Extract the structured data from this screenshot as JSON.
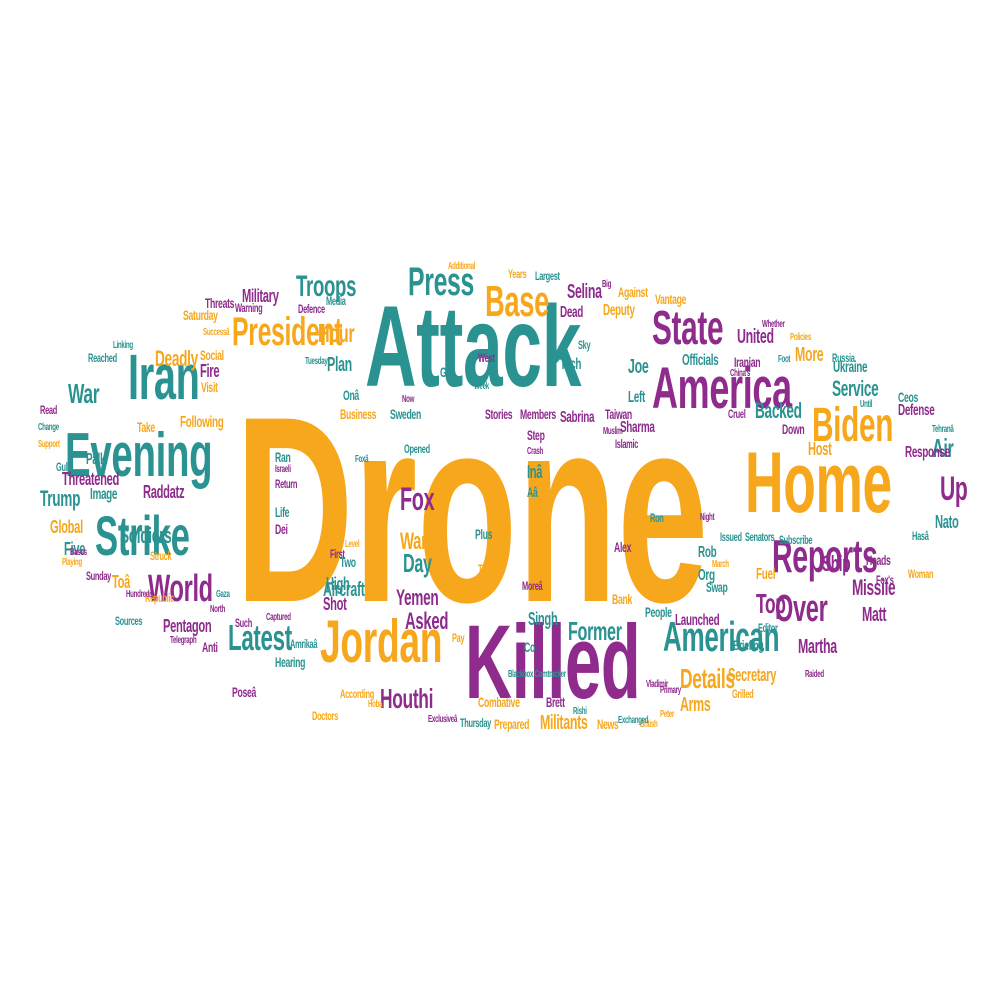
{
  "palette": {
    "teal": "#2a9391",
    "purple": "#8e2b8c",
    "gold": "#f6a71c",
    "background": "#ffffff"
  },
  "words": [
    {
      "text": "Drone",
      "color": "gold"
    },
    {
      "text": "Attack",
      "color": "teal"
    },
    {
      "text": "Killed",
      "color": "purple"
    },
    {
      "text": "Home",
      "color": "gold"
    },
    {
      "text": "America",
      "color": "purple"
    },
    {
      "text": "Evening",
      "color": "teal"
    },
    {
      "text": "Jordan",
      "color": "gold"
    },
    {
      "text": "Strike",
      "color": "teal"
    },
    {
      "text": "Iran",
      "color": "teal"
    },
    {
      "text": "President",
      "color": "gold"
    },
    {
      "text": "Reports",
      "color": "purple"
    },
    {
      "text": "Biden",
      "color": "gold"
    },
    {
      "text": "American",
      "color": "teal"
    },
    {
      "text": "State",
      "color": "purple"
    },
    {
      "text": "Base",
      "color": "gold"
    },
    {
      "text": "Press",
      "color": "teal"
    },
    {
      "text": "World",
      "color": "purple"
    },
    {
      "text": "Latest",
      "color": "teal"
    },
    {
      "text": "Over",
      "color": "purple"
    },
    {
      "text": "Fox",
      "color": "purple"
    },
    {
      "text": "Houthi",
      "color": "purple"
    },
    {
      "text": "Troops",
      "color": "teal"
    },
    {
      "text": "Details",
      "color": "gold"
    },
    {
      "text": "Up",
      "color": "purple"
    },
    {
      "text": "Air",
      "color": "teal"
    },
    {
      "text": "Missile",
      "color": "purple"
    },
    {
      "text": "Service",
      "color": "teal"
    },
    {
      "text": "Top",
      "color": "purple"
    },
    {
      "text": "Backed",
      "color": "teal"
    },
    {
      "text": "Hour",
      "color": "gold"
    },
    {
      "text": "Deadly",
      "color": "gold"
    },
    {
      "text": "War",
      "color": "teal"
    },
    {
      "text": "Soldiers",
      "color": "teal"
    },
    {
      "text": "Trump",
      "color": "teal"
    },
    {
      "text": "Threatened",
      "color": "purple"
    },
    {
      "text": "Military",
      "color": "purple"
    },
    {
      "text": "Day",
      "color": "teal"
    },
    {
      "text": "Former",
      "color": "teal"
    },
    {
      "text": "Asked",
      "color": "purple"
    },
    {
      "text": "Wang",
      "color": "gold"
    },
    {
      "text": "Yemen",
      "color": "purple"
    },
    {
      "text": "Plan",
      "color": "teal"
    },
    {
      "text": "Joe",
      "color": "teal"
    },
    {
      "text": "United",
      "color": "purple"
    },
    {
      "text": "More",
      "color": "gold"
    },
    {
      "text": "Host",
      "color": "gold"
    },
    {
      "text": "Ship",
      "color": "purple"
    },
    {
      "text": "Nato",
      "color": "teal"
    },
    {
      "text": "Matt",
      "color": "purple"
    },
    {
      "text": "Martha",
      "color": "purple"
    },
    {
      "text": "Arms",
      "color": "gold"
    },
    {
      "text": "Secretary",
      "color": "gold"
    },
    {
      "text": "Pentagon",
      "color": "purple"
    },
    {
      "text": "Aircraft",
      "color": "teal"
    },
    {
      "text": "Shot",
      "color": "purple"
    },
    {
      "text": "High",
      "color": "teal"
    },
    {
      "text": "Militants",
      "color": "gold"
    },
    {
      "text": "Launched",
      "color": "purple"
    },
    {
      "text": "Officials",
      "color": "teal"
    },
    {
      "text": "Iranian",
      "color": "purple"
    },
    {
      "text": "Defense",
      "color": "purple"
    },
    {
      "text": "Response",
      "color": "purple"
    },
    {
      "text": "Ukraine",
      "color": "teal"
    },
    {
      "text": "Selina",
      "color": "purple"
    },
    {
      "text": "Sabrina",
      "color": "purple"
    },
    {
      "text": "Sharma",
      "color": "purple"
    },
    {
      "text": "Singh",
      "color": "teal"
    },
    {
      "text": "Raddatz",
      "color": "purple"
    },
    {
      "text": "Global",
      "color": "gold"
    },
    {
      "text": "Five",
      "color": "teal"
    },
    {
      "text": "Image",
      "color": "teal"
    },
    {
      "text": "Following",
      "color": "gold"
    },
    {
      "text": "Take",
      "color": "gold"
    },
    {
      "text": "Visit",
      "color": "gold"
    },
    {
      "text": "Fire",
      "color": "purple"
    },
    {
      "text": "Social",
      "color": "gold"
    },
    {
      "text": "Threats",
      "color": "purple"
    },
    {
      "text": "Warning",
      "color": "purple"
    },
    {
      "text": "Deputy",
      "color": "gold"
    },
    {
      "text": "Against",
      "color": "gold"
    },
    {
      "text": "Vantage",
      "color": "gold"
    },
    {
      "text": "Tech",
      "color": "teal"
    },
    {
      "text": "Dead",
      "color": "purple"
    },
    {
      "text": "Left",
      "color": "teal"
    },
    {
      "text": "Members",
      "color": "purple"
    },
    {
      "text": "Stories",
      "color": "purple"
    },
    {
      "text": "Taiwan",
      "color": "purple"
    },
    {
      "text": "Sweden",
      "color": "teal"
    },
    {
      "text": "Business",
      "color": "gold"
    },
    {
      "text": "Step",
      "color": "purple"
    },
    {
      "text": "Rob",
      "color": "teal"
    },
    {
      "text": "Alex",
      "color": "purple"
    },
    {
      "text": "Org",
      "color": "teal"
    },
    {
      "text": "Fuel",
      "color": "gold"
    },
    {
      "text": "People",
      "color": "teal"
    },
    {
      "text": "Briefing",
      "color": "teal"
    },
    {
      "text": "Editor",
      "color": "teal"
    },
    {
      "text": "News",
      "color": "gold"
    },
    {
      "text": "Prepared",
      "color": "gold"
    },
    {
      "text": "Combative",
      "color": "gold"
    },
    {
      "text": "Brett",
      "color": "purple"
    },
    {
      "text": "According",
      "color": "gold"
    },
    {
      "text": "Hearing",
      "color": "teal"
    },
    {
      "text": "Doctors",
      "color": "gold"
    },
    {
      "text": "Anti",
      "color": "purple"
    },
    {
      "text": "Palki",
      "color": "teal"
    },
    {
      "text": "Toâ",
      "color": "gold"
    },
    {
      "text": "Onâ",
      "color": "teal"
    },
    {
      "text": "Inâ",
      "color": "teal"
    },
    {
      "text": "Aâ",
      "color": "teal"
    },
    {
      "text": "Ceos",
      "color": "teal"
    },
    {
      "text": "Heads",
      "color": "purple"
    },
    {
      "text": "Subscribe",
      "color": "teal"
    },
    {
      "text": "Down",
      "color": "purple"
    },
    {
      "text": "Grilled",
      "color": "gold"
    },
    {
      "text": "Two",
      "color": "teal"
    },
    {
      "text": "First",
      "color": "purple"
    },
    {
      "text": "Level",
      "color": "gold"
    },
    {
      "text": "Such",
      "color": "purple"
    },
    {
      "text": "Captured",
      "color": "purple"
    },
    {
      "text": "Poseâ",
      "color": "purple"
    },
    {
      "text": "Opened",
      "color": "teal"
    },
    {
      "text": "Go",
      "color": "teal"
    },
    {
      "text": "West",
      "color": "purple"
    },
    {
      "text": "Islamic",
      "color": "purple"
    },
    {
      "text": "Russia",
      "color": "teal"
    },
    {
      "text": "Ron",
      "color": "teal"
    },
    {
      "text": "Dei",
      "color": "purple"
    },
    {
      "text": "Life",
      "color": "teal"
    },
    {
      "text": "Ran",
      "color": "teal"
    },
    {
      "text": "Return",
      "color": "purple"
    },
    {
      "text": "Israeli",
      "color": "purple"
    },
    {
      "text": "Tuesday",
      "color": "teal"
    },
    {
      "text": "Thursday",
      "color": "teal"
    },
    {
      "text": "Exclusiveâ",
      "color": "purple"
    },
    {
      "text": "Sunday",
      "color": "purple"
    },
    {
      "text": "Republic",
      "color": "gold"
    },
    {
      "text": "Gulf",
      "color": "teal"
    },
    {
      "text": "Read",
      "color": "purple"
    },
    {
      "text": "Saturday",
      "color": "gold"
    },
    {
      "text": "Media",
      "color": "teal"
    },
    {
      "text": "Defence",
      "color": "purple"
    },
    {
      "text": "Largest",
      "color": "teal"
    },
    {
      "text": "Years",
      "color": "gold"
    },
    {
      "text": "Additional",
      "color": "gold"
    },
    {
      "text": "Tehranâ",
      "color": "teal"
    },
    {
      "text": "China's",
      "color": "purple"
    },
    {
      "text": "Muslim",
      "color": "purple"
    },
    {
      "text": "Sources",
      "color": "teal"
    },
    {
      "text": "Struck",
      "color": "gold"
    },
    {
      "text": "Reached",
      "color": "teal"
    },
    {
      "text": "Amrikaâ",
      "color": "teal"
    },
    {
      "text": "Moreâ",
      "color": "purple"
    },
    {
      "text": "Tvâ",
      "color": "gold"
    },
    {
      "text": "Foxâ",
      "color": "teal"
    },
    {
      "text": "Plus",
      "color": "teal"
    },
    {
      "text": "Bank",
      "color": "gold"
    },
    {
      "text": "Pay",
      "color": "gold"
    },
    {
      "text": "Co",
      "color": "teal"
    },
    {
      "text": "Swap",
      "color": "teal"
    },
    {
      "text": "Whether",
      "color": "purple"
    },
    {
      "text": "Issued",
      "color": "teal"
    },
    {
      "text": "Senators",
      "color": "teal"
    },
    {
      "text": "Fox's",
      "color": "purple"
    },
    {
      "text": "Woman",
      "color": "gold"
    },
    {
      "text": "Hasâ",
      "color": "teal"
    },
    {
      "text": "Foot",
      "color": "teal"
    },
    {
      "text": "Policies",
      "color": "gold"
    },
    {
      "text": "Cruel",
      "color": "purple"
    },
    {
      "text": "Sky",
      "color": "teal"
    },
    {
      "text": "Big",
      "color": "purple"
    },
    {
      "text": "Successâ",
      "color": "gold"
    },
    {
      "text": "Linking",
      "color": "teal"
    },
    {
      "text": "Crash",
      "color": "purple"
    },
    {
      "text": "Until",
      "color": "teal"
    },
    {
      "text": "Raided",
      "color": "purple"
    },
    {
      "text": "March",
      "color": "gold"
    },
    {
      "text": "Night",
      "color": "purple"
    },
    {
      "text": "British",
      "color": "gold"
    },
    {
      "text": "Primary",
      "color": "purple"
    },
    {
      "text": "Exchanged",
      "color": "teal"
    },
    {
      "text": "Peter",
      "color": "gold"
    },
    {
      "text": "Rishi",
      "color": "teal"
    },
    {
      "text": "Telegraph",
      "color": "purple"
    },
    {
      "text": "Hundreds",
      "color": "purple"
    },
    {
      "text": "Gaza",
      "color": "teal"
    },
    {
      "text": "North",
      "color": "purple"
    },
    {
      "text": "Change",
      "color": "teal"
    },
    {
      "text": "Support",
      "color": "gold"
    },
    {
      "text": "Bases",
      "color": "purple"
    },
    {
      "text": "Playing",
      "color": "gold"
    },
    {
      "text": "Now",
      "color": "purple"
    },
    {
      "text": "Week",
      "color": "teal"
    },
    {
      "text": "Vladimir",
      "color": "purple"
    },
    {
      "text": "Hoba",
      "color": "gold"
    },
    {
      "text": "Blackbox Comtracker",
      "color": "teal"
    }
  ]
}
